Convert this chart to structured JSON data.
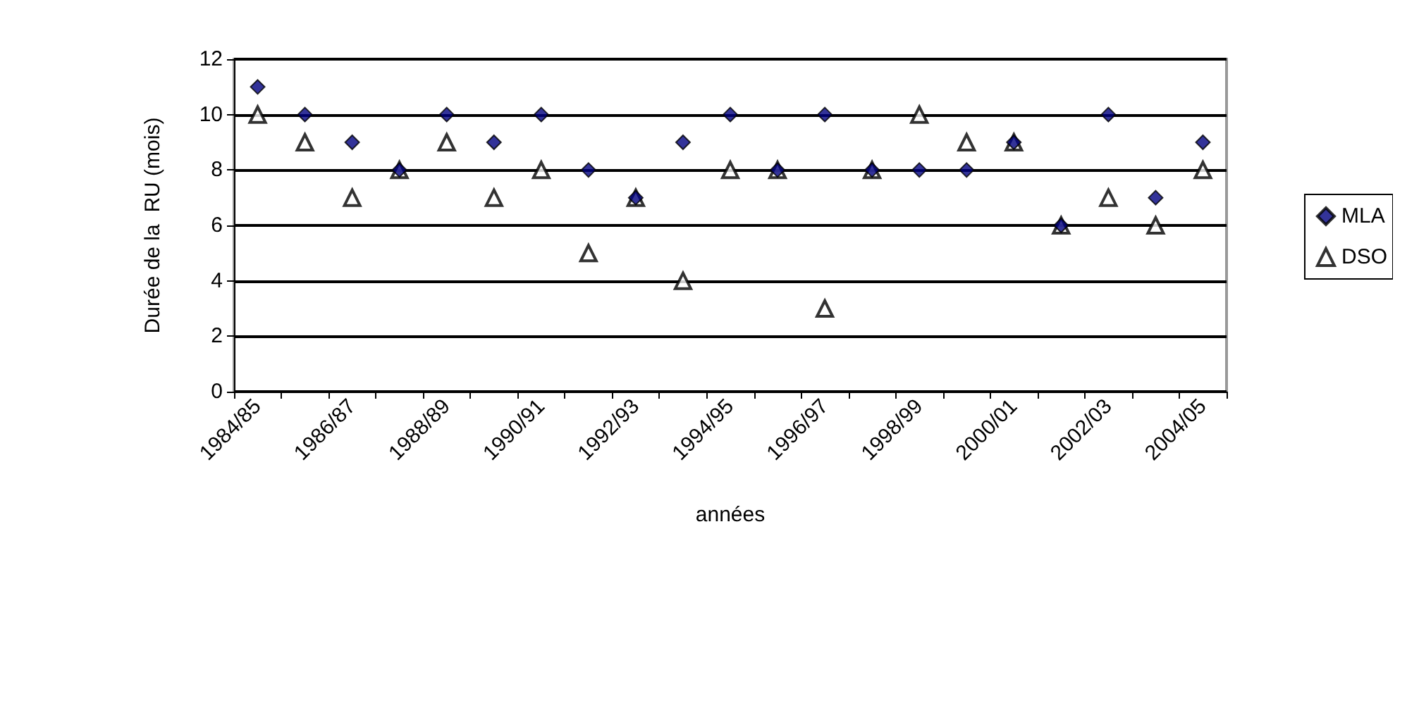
{
  "chart_data": {
    "type": "scatter",
    "xlabel": "années",
    "ylabel": "Durée de la  RU (mois)",
    "categories": [
      "1984/85",
      null,
      "1986/87",
      null,
      "1988/89",
      null,
      "1990/91",
      null,
      "1992/93",
      null,
      "1994/95",
      null,
      "1996/97",
      null,
      "1998/99",
      null,
      "2000/01",
      null,
      "2002/03",
      null,
      "2004/05"
    ],
    "series": [
      {
        "name": "MLA",
        "color": "#000080",
        "marker": "diamond",
        "values": [
          11,
          10,
          9,
          8,
          10,
          9,
          10,
          8,
          7,
          9,
          10,
          8,
          10,
          8,
          8,
          8,
          9,
          6,
          10,
          7,
          9
        ]
      },
      {
        "name": "DSO",
        "color": "#000000",
        "marker": "triangle",
        "values": [
          10,
          9,
          7,
          8,
          9,
          7,
          8,
          5,
          7,
          4,
          8,
          8,
          3,
          8,
          10,
          9,
          9,
          6,
          7,
          6,
          8
        ]
      }
    ],
    "ylim": [
      0,
      12
    ],
    "yticks": [
      0,
      2,
      4,
      6,
      8,
      10,
      12
    ],
    "grid": "y",
    "legend": "right"
  }
}
